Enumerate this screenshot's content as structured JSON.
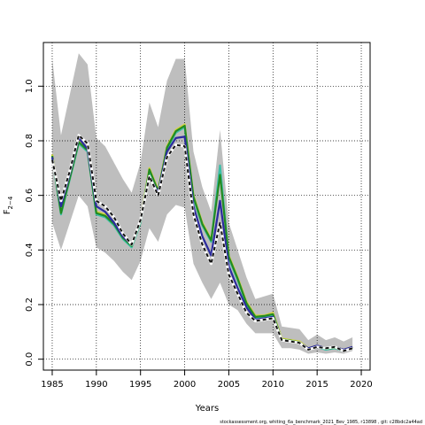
{
  "chart_data": {
    "type": "line",
    "xlabel": "Years",
    "ylabel_base": "F",
    "ylabel_sub": "2−4",
    "xlim": [
      1984,
      2021
    ],
    "ylim": [
      -0.04,
      1.16
    ],
    "xticks": [
      1985,
      1990,
      1995,
      2000,
      2005,
      2010,
      2015,
      2020
    ],
    "yticks": [
      0.0,
      0.2,
      0.4,
      0.6,
      0.8,
      1.0
    ],
    "ytick_labels": [
      "0.0",
      "0.2",
      "0.4",
      "0.6",
      "0.8",
      "1.0"
    ],
    "grid": "dotted",
    "footer": "stockassessment.org, whiting_6a_benchmark_2021_Bev_1985, r13898 , git: c28bdc2a44ad",
    "years": [
      1985,
      1986,
      1987,
      1988,
      1989,
      1990,
      1991,
      1992,
      1993,
      1994,
      1995,
      1996,
      1997,
      1998,
      1999,
      2000,
      2001,
      2002,
      2003,
      2004,
      2005,
      2006,
      2007,
      2008,
      2009,
      2010,
      2011,
      2012,
      2013,
      2014,
      2015,
      2016,
      2017,
      2018,
      2019
    ],
    "band": {
      "color": "#bebebe",
      "upper": [
        1.1,
        0.82,
        0.97,
        1.12,
        1.08,
        0.81,
        0.78,
        0.72,
        0.66,
        0.61,
        0.72,
        0.94,
        0.85,
        1.02,
        1.1,
        1.1,
        0.76,
        0.63,
        0.54,
        0.84,
        0.5,
        0.4,
        0.3,
        0.22,
        0.23,
        0.24,
        0.12,
        0.115,
        0.11,
        0.07,
        0.09,
        0.07,
        0.08,
        0.065,
        0.08
      ],
      "lower": [
        0.5,
        0.4,
        0.5,
        0.6,
        0.56,
        0.41,
        0.39,
        0.36,
        0.32,
        0.29,
        0.36,
        0.48,
        0.43,
        0.53,
        0.565,
        0.555,
        0.35,
        0.28,
        0.22,
        0.28,
        0.2,
        0.18,
        0.13,
        0.095,
        0.095,
        0.095,
        0.04,
        0.04,
        0.035,
        0.02,
        0.025,
        0.02,
        0.025,
        0.02,
        0.03
      ]
    },
    "series": [
      {
        "color": "#d4d43c",
        "dashed": false,
        "values": [
          0.75,
          0.54,
          0.67,
          0.8,
          0.77,
          0.54,
          0.53,
          0.5,
          0.45,
          0.42,
          0.51,
          0.7,
          0.62,
          0.78,
          0.84,
          0.86,
          0.6,
          0.5,
          0.44,
          0.68,
          0.38,
          0.3,
          0.21,
          0.16,
          0.16,
          0.17,
          0.075,
          0.07,
          0.065,
          0.04,
          0.05,
          0.04,
          0.045,
          0.035,
          0.045
        ]
      },
      {
        "color": "#3bbfa8",
        "dashed": false,
        "values": [
          0.74,
          0.53,
          0.66,
          0.79,
          0.76,
          0.53,
          0.52,
          0.49,
          0.44,
          0.41,
          0.5,
          0.69,
          0.61,
          0.77,
          0.83,
          0.85,
          0.59,
          0.49,
          0.43,
          0.71,
          0.37,
          0.29,
          0.2,
          0.15,
          0.155,
          0.16,
          0.07,
          0.065,
          0.06,
          0.035,
          0.045,
          0.035,
          0.04,
          0.03,
          0.04
        ]
      },
      {
        "color": "#228b22",
        "dashed": false,
        "values": [
          0.745,
          0.535,
          0.665,
          0.795,
          0.765,
          0.535,
          0.525,
          0.495,
          0.445,
          0.415,
          0.505,
          0.695,
          0.615,
          0.775,
          0.835,
          0.855,
          0.595,
          0.495,
          0.435,
          0.675,
          0.375,
          0.295,
          0.205,
          0.155,
          0.158,
          0.165,
          0.072,
          0.068,
          0.062,
          0.038,
          0.048,
          0.038,
          0.042,
          0.032,
          0.042
        ]
      },
      {
        "color": "#2b2b9f",
        "dashed": false,
        "values": [
          0.74,
          0.56,
          0.68,
          0.81,
          0.77,
          0.56,
          0.54,
          0.5,
          0.45,
          0.42,
          0.51,
          0.67,
          0.61,
          0.76,
          0.81,
          0.815,
          0.56,
          0.45,
          0.38,
          0.58,
          0.34,
          0.26,
          0.19,
          0.145,
          0.15,
          0.155,
          0.07,
          0.065,
          0.06,
          0.04,
          0.05,
          0.04,
          0.045,
          0.035,
          0.045
        ]
      },
      {
        "color": "#111111",
        "dashed": true,
        "values": [
          0.73,
          0.58,
          0.69,
          0.82,
          0.79,
          0.58,
          0.56,
          0.52,
          0.46,
          0.42,
          0.51,
          0.67,
          0.6,
          0.74,
          0.785,
          0.78,
          0.53,
          0.42,
          0.35,
          0.5,
          0.31,
          0.24,
          0.17,
          0.14,
          0.145,
          0.15,
          0.07,
          0.065,
          0.06,
          0.035,
          0.045,
          0.04,
          0.045,
          0.03,
          0.04
        ]
      }
    ]
  }
}
